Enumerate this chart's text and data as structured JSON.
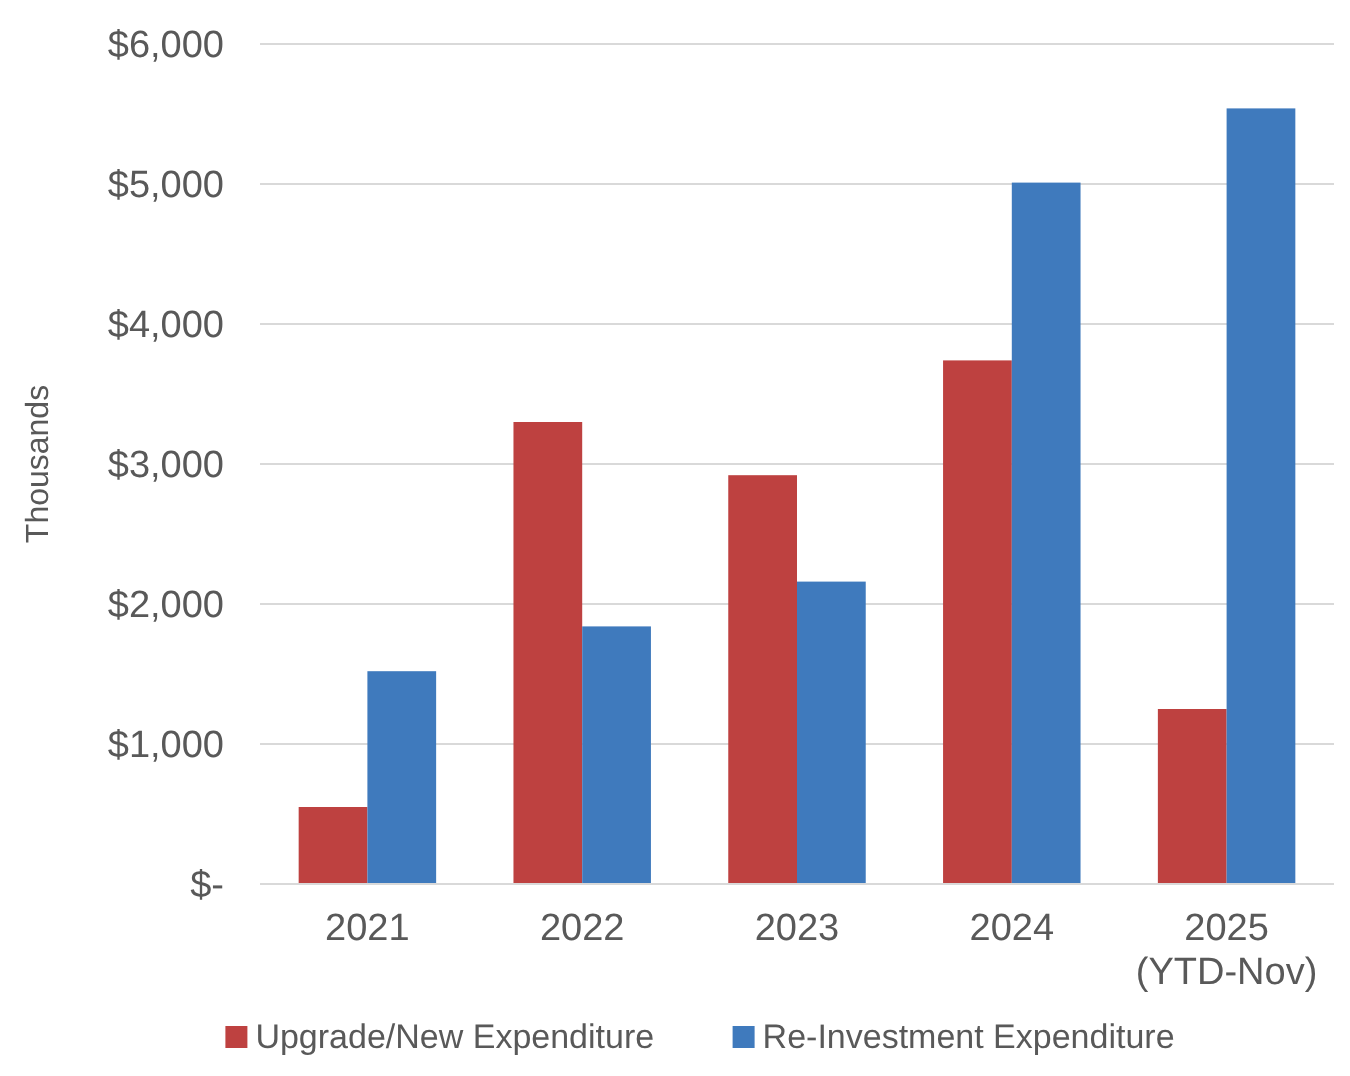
{
  "chart_data": {
    "type": "bar",
    "ylabel": "Thousands",
    "categories": [
      "2021",
      "2022",
      "2023",
      "2024",
      "2025\n(YTD-Nov)"
    ],
    "series": [
      {
        "name": "Upgrade/New Expenditure",
        "color": "#be4140",
        "values": [
          550,
          3300,
          2920,
          3740,
          1250
        ]
      },
      {
        "name": "Re-Investment Expenditure",
        "color": "#3f7abd",
        "values": [
          1520,
          1840,
          2160,
          5010,
          5540
        ]
      }
    ],
    "ylim": [
      0,
      6000
    ],
    "yticks": [
      {
        "value": 0,
        "label": "$-"
      },
      {
        "value": 1000,
        "label": "$1,000"
      },
      {
        "value": 2000,
        "label": "$2,000"
      },
      {
        "value": 3000,
        "label": "$3,000"
      },
      {
        "value": 4000,
        "label": "$4,000"
      },
      {
        "value": 5000,
        "label": "$5,000"
      },
      {
        "value": 6000,
        "label": "$6,000"
      }
    ],
    "grid": "y",
    "legend": "bottom"
  }
}
